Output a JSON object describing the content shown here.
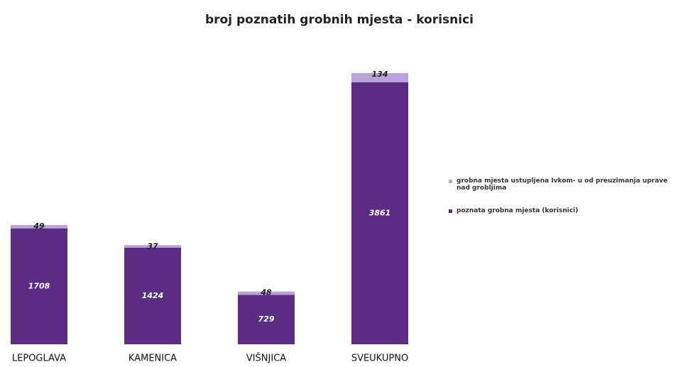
{
  "chart_data": {
    "type": "stacked-bar",
    "title": "broj poznatih grobnih mjesta - korisnici",
    "categories": [
      "LEPOGLAVA",
      "KAMENICA",
      "VIŠNJICA",
      "SVEUKUPNO"
    ],
    "series": [
      {
        "name": "poznata grobna mjesta (korisnici)",
        "color": "#5b2c83",
        "values": [
          1708,
          1424,
          729,
          3861
        ]
      },
      {
        "name": "grobna mjesta ustupljena Ivkom- u od preuzimanja uprave nad grobljima",
        "color": "#b9a2d8",
        "values": [
          49,
          37,
          48,
          134
        ]
      }
    ]
  }
}
